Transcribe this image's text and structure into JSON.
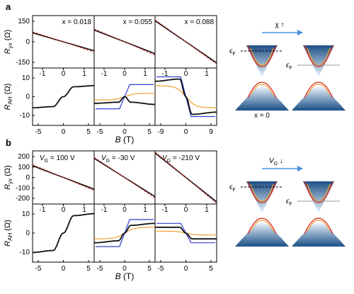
{
  "figure": {
    "rows": [
      {
        "letter": "a",
        "ryx_label": "R",
        "ryx_sub": "yx",
        "ryx_unit": " (Ω)",
        "rah_label": "R",
        "rah_sub": "AH",
        "rah_unit": " (Ω)",
        "xlabel": "B (T)",
        "ryx_yticks": [
          "150",
          "0",
          "-150"
        ],
        "rah_yticks": [
          "10",
          "0",
          "-10"
        ],
        "panels": [
          {
            "annotation": "x = 0.018",
            "top_ticks": [
              "-1",
              "0",
              "1"
            ],
            "bottom_ticks": [
              "-5",
              "0",
              "5"
            ]
          },
          {
            "annotation": "x = 0.055",
            "top_ticks": [
              "-1",
              "0",
              "1"
            ],
            "bottom_ticks": [
              "-5",
              "0",
              "5"
            ]
          },
          {
            "annotation": "x = 0.088",
            "top_ticks": [
              "-1",
              "0",
              "1"
            ],
            "bottom_ticks": [
              "-9",
              "0",
              "9"
            ]
          }
        ],
        "schematic": {
          "arrow_label": "χ ↑",
          "left_fermi": "ϵF",
          "right_fermi": "ϵF",
          "left_caption": "x = 0"
        }
      },
      {
        "letter": "b",
        "ryx_label": "R",
        "ryx_sub": "yx",
        "ryx_unit": " (Ω)",
        "rah_label": "R",
        "rah_sub": "AH",
        "rah_unit": " (Ω)",
        "xlabel": "B (T)",
        "ryx_yticks": [
          "200",
          "100",
          "0",
          "-100",
          "-200"
        ],
        "rah_yticks": [
          "10",
          "0",
          "-10"
        ],
        "panels": [
          {
            "annotation": "VG = 100 V",
            "top_ticks": [
              "-1",
              "0",
              "1"
            ],
            "bottom_ticks": [
              "-5",
              "0",
              "5"
            ]
          },
          {
            "annotation": "VG = -30 V",
            "top_ticks": [
              "-1",
              "0",
              "1"
            ],
            "bottom_ticks": [
              "-5",
              "0",
              "5"
            ]
          },
          {
            "annotation": "VG = -210 V",
            "top_ticks": [
              "-1",
              "0",
              "1"
            ],
            "bottom_ticks": [
              "-5",
              "0",
              "5"
            ]
          }
        ],
        "schematic": {
          "arrow_label": "VG ↓",
          "left_fermi": "ϵF",
          "right_fermi": "ϵF",
          "left_caption": ""
        }
      }
    ],
    "colors": {
      "data": "#111111",
      "fit": "#d42020",
      "blue": "#3340d0",
      "orange": "#f0a030",
      "arrow": "#4a90e2"
    }
  },
  "chart_data": [
    {
      "type": "line",
      "title": "x = 0.018",
      "xlabel": "B (T)",
      "ylabel": "Ryx (Ω)",
      "xlim": [
        -5,
        5
      ],
      "ylim": [
        -200,
        200
      ],
      "series": [
        {
          "values": [
            [
              -5,
              68
            ],
            [
              0,
              0
            ],
            [
              5,
              -68
            ]
          ]
        }
      ]
    },
    {
      "type": "line",
      "title": "x = 0.055",
      "xlabel": "B (T)",
      "ylabel": "Ryx (Ω)",
      "xlim": [
        -5,
        5
      ],
      "ylim": [
        -200,
        200
      ],
      "series": [
        {
          "values": [
            [
              -5,
              90
            ],
            [
              0,
              0
            ],
            [
              5,
              -90
            ]
          ]
        }
      ]
    },
    {
      "type": "line",
      "title": "x = 0.088",
      "xlabel": "B (T)",
      "ylabel": "Ryx (Ω)",
      "xlim": [
        -9,
        9
      ],
      "ylim": [
        -200,
        200
      ],
      "series": [
        {
          "values": [
            [
              -9,
              160
            ],
            [
              0,
              0
            ],
            [
              9,
              -160
            ]
          ]
        }
      ]
    },
    {
      "type": "line",
      "xlabel": "B (T)",
      "ylabel": "RAH (Ω)",
      "xlim": [
        -1.5,
        1.5
      ],
      "ylim": [
        -13,
        13
      ],
      "series": [
        {
          "values": [
            [
              -1.5,
              -5
            ],
            [
              -0.5,
              -4.5
            ],
            [
              0,
              0
            ],
            [
              0.5,
              4.5
            ],
            [
              1.5,
              5
            ]
          ]
        }
      ]
    },
    {
      "type": "line",
      "xlabel": "B (T)",
      "ylabel": "RAH (Ω)",
      "xlim": [
        -1.5,
        1.5
      ],
      "ylim": [
        -13,
        13
      ],
      "series": [
        {
          "values": [
            [
              -1.5,
              -3
            ],
            [
              -0.3,
              -2.5
            ],
            [
              0,
              0
            ],
            [
              0.3,
              -2.5
            ],
            [
              1.5,
              -3.5
            ]
          ]
        }
      ]
    },
    {
      "type": "line",
      "xlabel": "B (T)",
      "ylabel": "RAH (Ω)",
      "xlim": [
        -1.5,
        1.5
      ],
      "ylim": [
        -13,
        13
      ],
      "series": [
        {
          "values": [
            [
              -1.5,
              7
            ],
            [
              -0.3,
              8
            ],
            [
              0,
              0
            ],
            [
              0.3,
              -8
            ],
            [
              1.5,
              -7
            ]
          ]
        }
      ]
    },
    {
      "type": "line",
      "title": "VG = 100 V",
      "xlabel": "B (T)",
      "ylabel": "Ryx (Ω)",
      "xlim": [
        -5,
        5
      ],
      "ylim": [
        -250,
        250
      ],
      "series": [
        {
          "values": [
            [
              -5,
              110
            ],
            [
              0,
              0
            ],
            [
              5,
              -110
            ]
          ]
        }
      ]
    },
    {
      "type": "line",
      "title": "VG = -30 V",
      "xlabel": "B (T)",
      "ylabel": "Ryx (Ω)",
      "xlim": [
        -5,
        5
      ],
      "ylim": [
        -250,
        250
      ],
      "series": [
        {
          "values": [
            [
              -5,
              180
            ],
            [
              0,
              0
            ],
            [
              5,
              -180
            ]
          ]
        }
      ]
    },
    {
      "type": "line",
      "title": "VG = -210 V",
      "xlabel": "B (T)",
      "ylabel": "Ryx (Ω)",
      "xlim": [
        -5,
        5
      ],
      "ylim": [
        -250,
        250
      ],
      "series": [
        {
          "values": [
            [
              -5,
              230
            ],
            [
              0,
              0
            ],
            [
              5,
              -230
            ]
          ]
        }
      ]
    },
    {
      "type": "line",
      "xlabel": "B (T)",
      "ylabel": "RAH (Ω)",
      "xlim": [
        -1.5,
        1.5
      ],
      "ylim": [
        -15,
        15
      ],
      "series": [
        {
          "values": [
            [
              -1.5,
              -10
            ],
            [
              -0.5,
              -9
            ],
            [
              0,
              0
            ],
            [
              0.5,
              9
            ],
            [
              1.5,
              10
            ]
          ]
        }
      ]
    },
    {
      "type": "line",
      "xlabel": "B (T)",
      "ylabel": "RAH (Ω)",
      "xlim": [
        -1.5,
        1.5
      ],
      "ylim": [
        -15,
        15
      ],
      "series": [
        {
          "values": [
            [
              -1.5,
              -5
            ],
            [
              -0.3,
              -4
            ],
            [
              0,
              0
            ],
            [
              0.3,
              4
            ],
            [
              1.5,
              5
            ]
          ]
        }
      ]
    },
    {
      "type": "line",
      "xlabel": "B (T)",
      "ylabel": "RAH (Ω)",
      "xlim": [
        -1.5,
        1.5
      ],
      "ylim": [
        -15,
        15
      ],
      "series": [
        {
          "values": [
            [
              -1.5,
              3
            ],
            [
              -0.3,
              3
            ],
            [
              0,
              0
            ],
            [
              0.3,
              -3
            ],
            [
              1.5,
              -3
            ]
          ]
        }
      ]
    }
  ]
}
